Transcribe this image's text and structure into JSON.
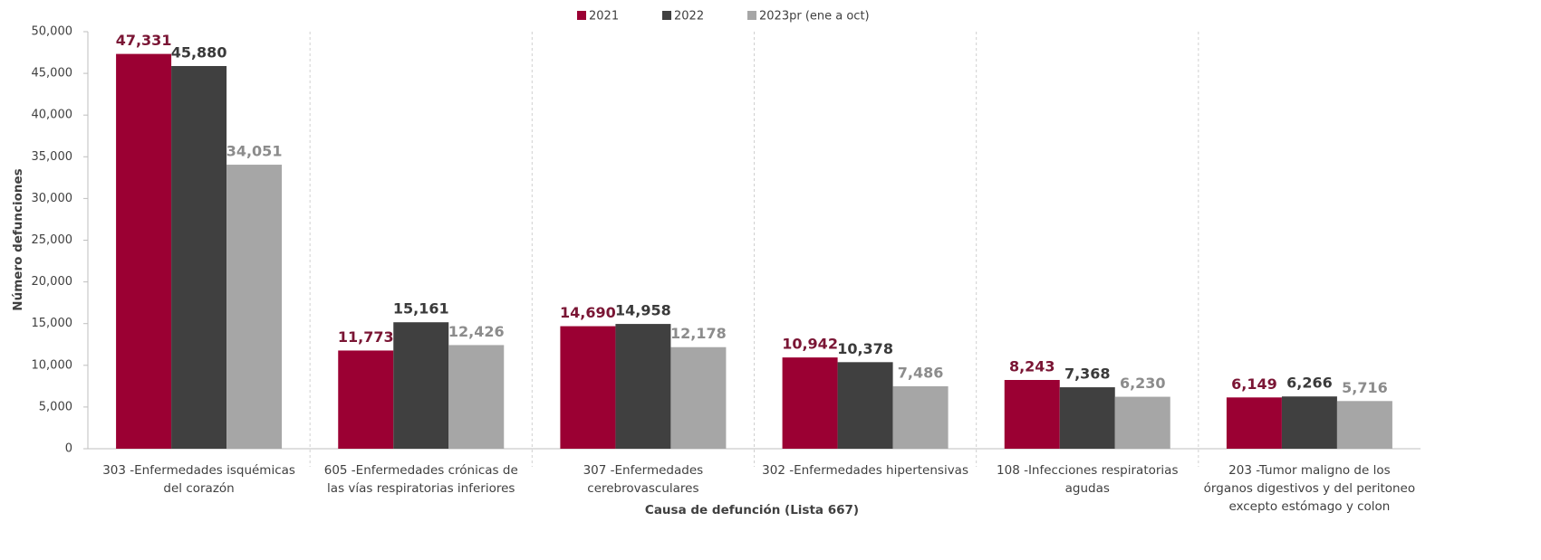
{
  "chart_data": {
    "type": "bar",
    "x_label": "Causa de defunción (Lista 667)",
    "y_label": "Número defunciones",
    "categories": [
      "303 -Enfermedades isquémicas del corazón",
      "605 -Enfermedades crónicas de las vías respiratorias inferiores",
      "307 -Enfermedades cerebrovasculares",
      "302 -Enfermedades hipertensivas",
      "108 -Infecciones respiratorias agudas",
      "203 -Tumor maligno de los órganos digestivos y del peritoneo excepto estómago y colon"
    ],
    "series": [
      {
        "name": "2021",
        "color": "#9b0033",
        "label_color": "#7a1534",
        "values": [
          47331,
          11773,
          14690,
          10942,
          8243,
          6149
        ],
        "value_labels": [
          "47,331",
          "11,773",
          "14,690",
          "10,942",
          "8,243",
          "6,149"
        ]
      },
      {
        "name": "2022",
        "color": "#404040",
        "label_color": "#3a3a3a",
        "values": [
          45880,
          15161,
          14958,
          10378,
          7368,
          6266
        ],
        "value_labels": [
          "45,880",
          "15,161",
          "14,958",
          "10,378",
          "7,368",
          "6,266"
        ]
      },
      {
        "name": "2023pr (ene a oct)",
        "color": "#a6a6a6",
        "label_color": "#8c8c8c",
        "values": [
          34051,
          12426,
          12178,
          7486,
          6230,
          5716
        ],
        "value_labels": [
          "34,051",
          "12,426",
          "12,178",
          "7,486",
          "6,230",
          "5,716"
        ]
      }
    ],
    "ylim": [
      0,
      50000
    ],
    "yticks": [
      0,
      {
        "value": 5000,
        "label": "5,000"
      },
      {
        "value": 10000,
        "label": "10,000"
      },
      {
        "value": 15000,
        "label": "15,000"
      },
      {
        "value": 20000,
        "label": "20,000"
      },
      {
        "value": 25000,
        "label": "25,000"
      },
      {
        "value": 30000,
        "label": "30,000"
      },
      {
        "value": 35000,
        "label": "35,000"
      },
      {
        "value": 40000,
        "label": "40,000"
      },
      {
        "value": 45000,
        "label": "45,000"
      },
      {
        "value": 50000,
        "label": "50,000"
      }
    ],
    "legend": "top",
    "grid": false
  }
}
